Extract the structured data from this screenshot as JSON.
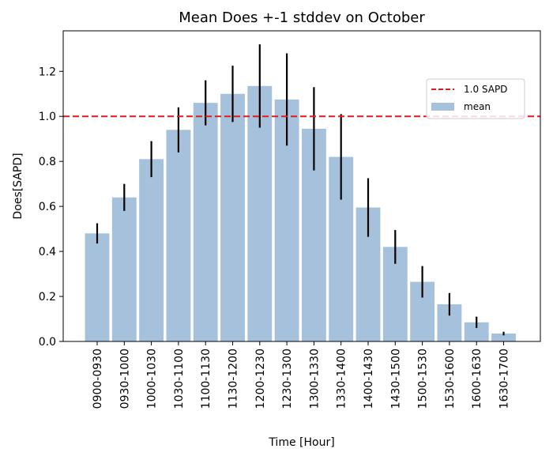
{
  "chart_data": {
    "type": "bar",
    "title": "Mean Does +-1 stddev on October",
    "xlabel": "Time [Hour]",
    "ylabel": "Does[SAPD]",
    "categories": [
      "0900-0930",
      "0930-1000",
      "1000-1030",
      "1030-1100",
      "1100-1130",
      "1130-1200",
      "1200-1230",
      "1230-1300",
      "1300-1330",
      "1330-1400",
      "1400-1430",
      "1430-1500",
      "1500-1530",
      "1530-1600",
      "1600-1630",
      "1630-1700"
    ],
    "series": [
      {
        "name": "mean",
        "values": [
          0.48,
          0.64,
          0.81,
          0.94,
          1.06,
          1.1,
          1.135,
          1.075,
          0.945,
          0.82,
          0.595,
          0.42,
          0.265,
          0.165,
          0.085,
          0.035
        ],
        "errors": [
          0.045,
          0.06,
          0.08,
          0.1,
          0.1,
          0.125,
          0.185,
          0.205,
          0.185,
          0.19,
          0.13,
          0.075,
          0.07,
          0.05,
          0.025,
          0.008
        ]
      }
    ],
    "reference_line": {
      "label": "1.0 SAPD",
      "value": 1.0,
      "color": "#e31a1c"
    },
    "bar_color": "#a6c1dc",
    "ylim": [
      0,
      1.38
    ],
    "yticks": [
      "0.0",
      "0.2",
      "0.4",
      "0.6",
      "0.8",
      "1.0",
      "1.2"
    ],
    "legend": {
      "position": "upper-right",
      "entries": [
        "1.0 SAPD",
        "mean"
      ]
    },
    "grid": false
  }
}
